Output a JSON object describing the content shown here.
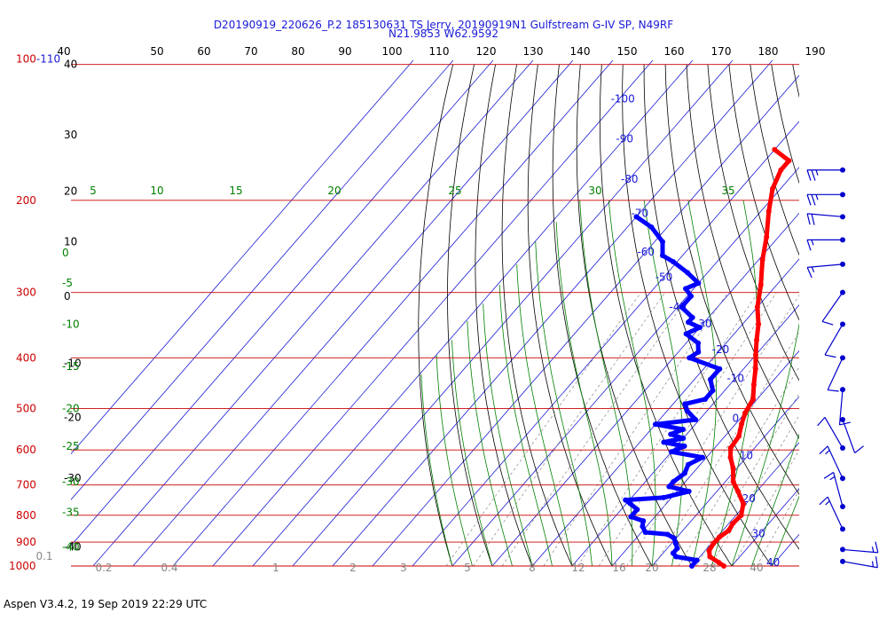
{
  "header": {
    "line1": "D20190919_220626_P.2 185130631 TS Jerry, 20190919N1 Gulfstream G-IV SP, N49RF",
    "line2": "N21.9853 W62.9592"
  },
  "footer": {
    "text": "Aspen V3.4.2, 19 Sep 2019  22:29 UTC"
  },
  "chart_data": {
    "type": "skew-t",
    "colors": {
      "temperature": "#ff0000",
      "dewpoint": "#0000ff",
      "isobar": "#cc0000",
      "isotherm_label": "#0000cc",
      "mixing_ratio": "#808080",
      "moist_adiabat": "#008000",
      "dry_adiabat": "#000000",
      "wind_barb": "#0000cc"
    },
    "top_axis": {
      "ticks": [
        "40",
        "50",
        "60",
        "70",
        "80",
        "90",
        "100",
        "110",
        "120",
        "130",
        "140",
        "150",
        "160",
        "170",
        "180",
        "190"
      ]
    },
    "pressure_levels": [
      {
        "p": 110,
        "label": "100-110"
      },
      {
        "p": 200,
        "label": "200"
      },
      {
        "p": 300,
        "label": "300"
      },
      {
        "p": 400,
        "label": "400"
      },
      {
        "p": 500,
        "label": "500"
      },
      {
        "p": 600,
        "label": "600"
      },
      {
        "p": 700,
        "label": "700"
      },
      {
        "p": 800,
        "label": "800"
      },
      {
        "p": 900,
        "label": "900"
      },
      {
        "p": 1000,
        "label": "1000"
      }
    ],
    "isotherm_labels": [
      {
        "t": -100,
        "p": 130,
        "label": "-100"
      },
      {
        "t": -90,
        "p": 155,
        "label": "-90"
      },
      {
        "t": -80,
        "p": 185,
        "label": "-80"
      },
      {
        "t": -70,
        "p": 215,
        "label": "-70"
      },
      {
        "t": -60,
        "p": 255,
        "label": "-60"
      },
      {
        "t": -50,
        "p": 285,
        "label": "-50"
      },
      {
        "t": -40,
        "p": 325,
        "label": "-40"
      },
      {
        "t": -30,
        "p": 350,
        "label": "-30"
      },
      {
        "t": -20,
        "p": 392,
        "label": "-20"
      },
      {
        "t": -10,
        "p": 445,
        "label": "-10"
      },
      {
        "t": 0,
        "p": 530,
        "label": "0"
      },
      {
        "t": 10,
        "p": 625,
        "label": "10"
      },
      {
        "t": 20,
        "p": 755,
        "label": "20"
      },
      {
        "t": 30,
        "p": 880,
        "label": "30"
      },
      {
        "t": 40,
        "p": 1000,
        "label": "40"
      }
    ],
    "left_axis_labels": [
      {
        "p": 110,
        "label": "40"
      },
      {
        "p": 150,
        "label": "30"
      },
      {
        "p": 192,
        "label": "20"
      },
      {
        "p": 240,
        "label": "10"
      },
      {
        "p": 305,
        "label": "0"
      },
      {
        "p": 410,
        "label": "-10"
      },
      {
        "p": 520,
        "label": "-20"
      },
      {
        "p": 680,
        "label": "-30"
      },
      {
        "p": 920,
        "label": "-40"
      }
    ],
    "moist_labels_left": [
      {
        "p": 252,
        "label": "0"
      },
      {
        "p": 288,
        "label": "-5"
      },
      {
        "p": 345,
        "label": "-10"
      },
      {
        "p": 415,
        "label": "-15"
      },
      {
        "p": 500,
        "label": "-20"
      },
      {
        "p": 590,
        "label": "-25"
      },
      {
        "p": 690,
        "label": "-30"
      },
      {
        "p": 790,
        "label": "-35"
      },
      {
        "p": 920,
        "label": "-40"
      }
    ],
    "moist_labels_top": [
      "5",
      "10",
      "15",
      "20",
      "25",
      "30",
      "35"
    ],
    "mixing_labels": [
      "0.1",
      "0.2",
      "0.4",
      "1",
      "2",
      "3",
      "5",
      "8",
      "12",
      "16",
      "20",
      "28",
      "40"
    ],
    "temperature_profile": [
      [
        1000,
        28.0
      ],
      [
        985,
        26.0
      ],
      [
        960,
        22.5
      ],
      [
        935,
        21.0
      ],
      [
        905,
        20.5
      ],
      [
        880,
        20.6
      ],
      [
        855,
        21.5
      ],
      [
        830,
        21.0
      ],
      [
        800,
        21.3
      ],
      [
        760,
        19.3
      ],
      [
        720,
        15.3
      ],
      [
        690,
        12.0
      ],
      [
        650,
        9.0
      ],
      [
        620,
        6.0
      ],
      [
        595,
        4.0
      ],
      [
        565,
        3.5
      ],
      [
        535,
        1.5
      ],
      [
        510,
        0.0
      ],
      [
        480,
        -1.0
      ],
      [
        450,
        -4.0
      ],
      [
        420,
        -7.0
      ],
      [
        395,
        -10.0
      ],
      [
        370,
        -13.0
      ],
      [
        345,
        -16.0
      ],
      [
        320,
        -20.0
      ],
      [
        290,
        -24.0
      ],
      [
        260,
        -29.0
      ],
      [
        235,
        -33.0
      ],
      [
        210,
        -38.0
      ],
      [
        190,
        -42.0
      ],
      [
        175,
        -44.0
      ],
      [
        168,
        -44.0
      ],
      [
        160,
        -50.0
      ]
    ],
    "dewpoint_profile": [
      [
        1000,
        20.0
      ],
      [
        975,
        20.0
      ],
      [
        960,
        14.0
      ],
      [
        945,
        12.5
      ],
      [
        925,
        12.5
      ],
      [
        905,
        11.0
      ],
      [
        885,
        9.5
      ],
      [
        870,
        7.0
      ],
      [
        862,
        1.0
      ],
      [
        840,
        -1.0
      ],
      [
        820,
        -2.0
      ],
      [
        805,
        -6.0
      ],
      [
        780,
        -6.0
      ],
      [
        760,
        -9.0
      ],
      [
        748,
        -11.0
      ],
      [
        740,
        -2.0
      ],
      [
        720,
        3.0
      ],
      [
        705,
        -3.0
      ],
      [
        690,
        -3.0
      ],
      [
        665,
        -2.0
      ],
      [
        640,
        -3.0
      ],
      [
        620,
        -1.0
      ],
      [
        605,
        -10.0
      ],
      [
        590,
        -8.0
      ],
      [
        580,
        -14.0
      ],
      [
        570,
        -10.0
      ],
      [
        560,
        -14.0
      ],
      [
        548,
        -12.0
      ],
      [
        536,
        -20.0
      ],
      [
        525,
        -11.0
      ],
      [
        505,
        -15.0
      ],
      [
        490,
        -17.0
      ],
      [
        480,
        -13.0
      ],
      [
        462,
        -13.0
      ],
      [
        440,
        -16.0
      ],
      [
        420,
        -16.0
      ],
      [
        400,
        -26.0
      ],
      [
        390,
        -25.0
      ],
      [
        375,
        -27.0
      ],
      [
        360,
        -32.0
      ],
      [
        350,
        -30.0
      ],
      [
        342,
        -34.0
      ],
      [
        335,
        -34.0
      ],
      [
        320,
        -39.0
      ],
      [
        305,
        -39.0
      ],
      [
        295,
        -42.0
      ],
      [
        288,
        -40.0
      ],
      [
        275,
        -45.0
      ],
      [
        262,
        -51.0
      ],
      [
        255,
        -55.0
      ],
      [
        240,
        -58.0
      ],
      [
        225,
        -64.0
      ],
      [
        215,
        -70.0
      ]
    ],
    "wind_barbs": [
      {
        "p": 175,
        "speed": 25,
        "dir": 270
      },
      {
        "p": 195,
        "speed": 25,
        "dir": 270
      },
      {
        "p": 215,
        "speed": 20,
        "dir": 275
      },
      {
        "p": 238,
        "speed": 15,
        "dir": 270
      },
      {
        "p": 265,
        "speed": 15,
        "dir": 265
      },
      {
        "p": 300,
        "speed": 10,
        "dir": 215
      },
      {
        "p": 345,
        "speed": 10,
        "dir": 210
      },
      {
        "p": 400,
        "speed": 10,
        "dir": 205
      },
      {
        "p": 460,
        "speed": 10,
        "dir": 185
      },
      {
        "p": 525,
        "speed": 10,
        "dir": 160
      },
      {
        "p": 595,
        "speed": 10,
        "dir": 330
      },
      {
        "p": 680,
        "speed": 15,
        "dir": 335
      },
      {
        "p": 770,
        "speed": 15,
        "dir": 345
      },
      {
        "p": 850,
        "speed": 15,
        "dir": 335
      },
      {
        "p": 930,
        "speed": 15,
        "dir": 95
      },
      {
        "p": 980,
        "speed": 15,
        "dir": 100
      }
    ]
  }
}
